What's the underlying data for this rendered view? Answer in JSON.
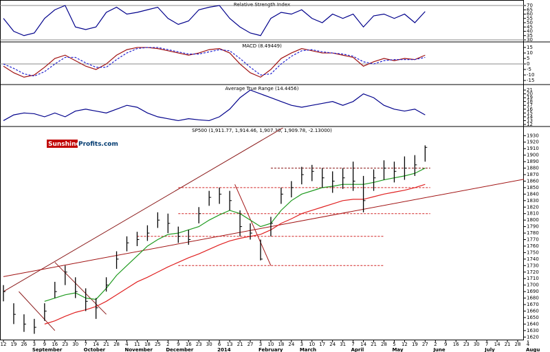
{
  "chart_data": [
    {
      "type": "line",
      "title": "Relative Strength Index",
      "ylim": [
        28.4,
        74.8
      ],
      "yticks": [
        70,
        65,
        60,
        55,
        50,
        45,
        40,
        35,
        30
      ],
      "hlines": [
        70,
        30
      ],
      "series": [
        {
          "color": "#00008b",
          "values": [
            55,
            40,
            35,
            38,
            55,
            65,
            70,
            45,
            42,
            45,
            62,
            68,
            60,
            62,
            65,
            68,
            55,
            48,
            52,
            65,
            68,
            70,
            55,
            45,
            38,
            35,
            55,
            62,
            60,
            65,
            55,
            50,
            60,
            55,
            60,
            45,
            58,
            60,
            55,
            60,
            50,
            63,
            null,
            null,
            null,
            null,
            null,
            null,
            null,
            null,
            null,
            null
          ]
        }
      ]
    },
    {
      "type": "line",
      "title": "MACD (8.49449)",
      "ylim": [
        -18.1,
        19.4
      ],
      "yticks": [
        15,
        10,
        5,
        0,
        -5,
        -10,
        -15
      ],
      "hlines": [
        0
      ],
      "series": [
        {
          "color": "#a01010",
          "values": [
            -2,
            -8,
            -12,
            -10,
            -3,
            5,
            8,
            3,
            -2,
            -5,
            0,
            8,
            13,
            15,
            15,
            14,
            12,
            10,
            8,
            10,
            13,
            14,
            10,
            0,
            -8,
            -12,
            -5,
            5,
            10,
            14,
            12,
            10,
            10,
            8,
            6,
            -2,
            2,
            5,
            3,
            5,
            4,
            8,
            null,
            null,
            null,
            null,
            null,
            null,
            null,
            null,
            null,
            null
          ]
        },
        {
          "color": "#2020d0",
          "dash": true,
          "values": [
            0,
            -4,
            -9,
            -11,
            -7,
            0,
            6,
            6,
            1,
            -3,
            -3,
            4,
            10,
            14,
            15,
            15,
            13,
            11,
            9,
            9,
            11,
            13,
            12,
            5,
            -3,
            -10,
            -9,
            0,
            7,
            12,
            13,
            11,
            10,
            9,
            7,
            2,
            0,
            3,
            4,
            4,
            4,
            6,
            null,
            null,
            null,
            null,
            null,
            null,
            null,
            null,
            null,
            null
          ]
        }
      ]
    },
    {
      "type": "line",
      "title": "Average True Range (14.4456)",
      "ylim": [
        11.64,
        22.26
      ],
      "yticks": [
        21,
        20,
        19,
        18,
        17,
        16,
        15,
        14,
        13,
        12
      ],
      "series": [
        {
          "color": "#00008b",
          "values": [
            13,
            14.5,
            15,
            14.8,
            14,
            15,
            14,
            15.5,
            16,
            15.5,
            15,
            16,
            17,
            16.5,
            15,
            14,
            13.5,
            13,
            13.5,
            13.2,
            13,
            14,
            16,
            19,
            21,
            20,
            19,
            18,
            17,
            16.5,
            17,
            17.5,
            18,
            17,
            18,
            20,
            19,
            17,
            16,
            15.5,
            16,
            14.5,
            null,
            null,
            null,
            null,
            null,
            null,
            null,
            null,
            null,
            null
          ]
        }
      ]
    },
    {
      "type": "ohlc",
      "title": "SP500 (1,911.77, 1,914.46, 1,907.30, 1,909.78, -2.13000)",
      "logo": [
        "Sunshine",
        "Profits.com"
      ],
      "ylim": [
        1615,
        1943
      ],
      "yticks": [
        1930,
        1920,
        1910,
        1900,
        1890,
        1880,
        1870,
        1860,
        1850,
        1840,
        1830,
        1820,
        1810,
        1800,
        1790,
        1780,
        1770,
        1760,
        1750,
        1740,
        1730,
        1720,
        1710,
        1700,
        1690,
        1680,
        1670,
        1660,
        1650,
        1640,
        1630,
        1620
      ],
      "categories": [
        "12",
        "19",
        "26",
        "3",
        "9",
        "16",
        "23",
        "30",
        "7",
        "14",
        "21",
        "28",
        "4",
        "11",
        "18",
        "25",
        "2",
        "9",
        "16",
        "23",
        "30",
        "6",
        "13",
        "21",
        "27",
        "3",
        "10",
        "18",
        "24",
        "3",
        "10",
        "17",
        "24",
        "31",
        "7",
        "14",
        "21",
        "28",
        "5",
        "12",
        "19",
        "27",
        "2",
        "9",
        "16",
        "23",
        "30",
        "7",
        "14",
        "21",
        "28",
        "4"
      ],
      "months": [
        null,
        null,
        null,
        "September",
        null,
        null,
        null,
        null,
        "October",
        null,
        null,
        null,
        "November",
        null,
        null,
        null,
        "December",
        null,
        null,
        null,
        null,
        "2014",
        null,
        null,
        null,
        "February",
        null,
        null,
        null,
        "March",
        null,
        null,
        null,
        null,
        "April",
        null,
        null,
        null,
        "May",
        null,
        null,
        null,
        "June",
        null,
        null,
        null,
        null,
        "July",
        null,
        null,
        null,
        "Augu"
      ],
      "color": "#000000",
      "high": [
        1700,
        1672,
        1655,
        1648,
        1672,
        1705,
        1730,
        1712,
        1695,
        1680,
        1712,
        1752,
        1775,
        1782,
        1792,
        1812,
        1810,
        1790,
        1785,
        1820,
        1845,
        1850,
        1845,
        1815,
        1795,
        1770,
        1805,
        1850,
        1860,
        1882,
        1885,
        1880,
        1875,
        1880,
        1890,
        1868,
        1878,
        1892,
        1890,
        1898,
        1900,
        1915,
        null,
        null,
        null,
        null,
        null,
        null,
        null,
        null,
        null,
        null
      ],
      "low": [
        1675,
        1640,
        1628,
        1625,
        1645,
        1680,
        1700,
        1680,
        1660,
        1648,
        1690,
        1725,
        1752,
        1760,
        1768,
        1788,
        1780,
        1765,
        1762,
        1795,
        1822,
        1825,
        1815,
        1775,
        1770,
        1738,
        1775,
        1825,
        1835,
        1855,
        1860,
        1850,
        1842,
        1848,
        1845,
        1812,
        1845,
        1862,
        1858,
        1862,
        1868,
        1890,
        null,
        null,
        null,
        null,
        null,
        null,
        null,
        null,
        null,
        null
      ],
      "close": [
        1690,
        1655,
        1640,
        1635,
        1660,
        1690,
        1720,
        1690,
        1675,
        1665,
        1700,
        1740,
        1765,
        1770,
        1780,
        1800,
        1795,
        1775,
        1770,
        1810,
        1835,
        1840,
        1830,
        1790,
        1780,
        1740,
        1795,
        1840,
        1850,
        1870,
        1875,
        1865,
        1860,
        1865,
        1860,
        1830,
        1865,
        1880,
        1875,
        1880,
        1885,
        1912,
        null,
        null,
        null,
        null,
        null,
        null,
        null,
        null,
        null,
        null
      ],
      "series": [
        {
          "color": "#1e9a1e",
          "values": [
            null,
            null,
            null,
            null,
            1675,
            1680,
            1685,
            1688,
            1680,
            1678,
            1695,
            1715,
            1730,
            1745,
            1760,
            1770,
            1778,
            1780,
            1785,
            1790,
            1800,
            1808,
            1815,
            1810,
            1800,
            1790,
            1795,
            1815,
            1830,
            1840,
            1845,
            1850,
            1852,
            1855,
            1855,
            1855,
            1858,
            1862,
            1865,
            1868,
            1872,
            1880,
            null,
            null,
            null,
            null,
            null,
            null,
            null,
            null,
            null,
            null
          ]
        },
        {
          "color": "#e02020",
          "values": [
            null,
            null,
            null,
            null,
            1640,
            1645,
            1652,
            1658,
            1662,
            1667,
            1675,
            1685,
            1695,
            1705,
            1712,
            1720,
            1728,
            1735,
            1742,
            1748,
            1755,
            1762,
            1768,
            1772,
            1775,
            1778,
            1785,
            1795,
            1802,
            1810,
            1815,
            1820,
            1825,
            1830,
            1832,
            1832,
            1836,
            1840,
            1843,
            1846,
            1850,
            1855,
            null,
            null,
            null,
            null,
            null,
            null,
            null,
            null,
            null,
            null
          ]
        }
      ],
      "trendlines": [
        {
          "x": [
            0,
            27.5
          ],
          "y": [
            1690,
            1945
          ],
          "color": "#8b1a1a"
        },
        {
          "x": [
            0,
            53
          ],
          "y": [
            1713,
            1870
          ],
          "color": "#a01010"
        },
        {
          "x": [
            1.5,
            5
          ],
          "y": [
            1690,
            1630
          ],
          "color": "#8b1a1a"
        },
        {
          "x": [
            5,
            10
          ],
          "y": [
            1735,
            1655
          ],
          "color": "#8b1a1a"
        },
        {
          "x": [
            22.5,
            26
          ],
          "y": [
            1855,
            1730
          ],
          "color": "#a01010"
        },
        {
          "x": [
            26,
            41.5
          ],
          "y": [
            1880,
            1880
          ],
          "color": "#8b1a1a",
          "dash": true
        },
        {
          "x": [
            17,
            41.5
          ],
          "y": [
            1850,
            1850
          ],
          "color": "#d02020",
          "dash": true
        },
        {
          "x": [
            17,
            41.5
          ],
          "y": [
            1810,
            1810
          ],
          "color": "#d02020",
          "dash": true
        },
        {
          "x": [
            13,
            37
          ],
          "y": [
            1775,
            1775
          ],
          "color": "#d02020",
          "dash": true
        },
        {
          "x": [
            17,
            37
          ],
          "y": [
            1730,
            1730
          ],
          "color": "#d02020",
          "dash": true
        }
      ]
    }
  ]
}
